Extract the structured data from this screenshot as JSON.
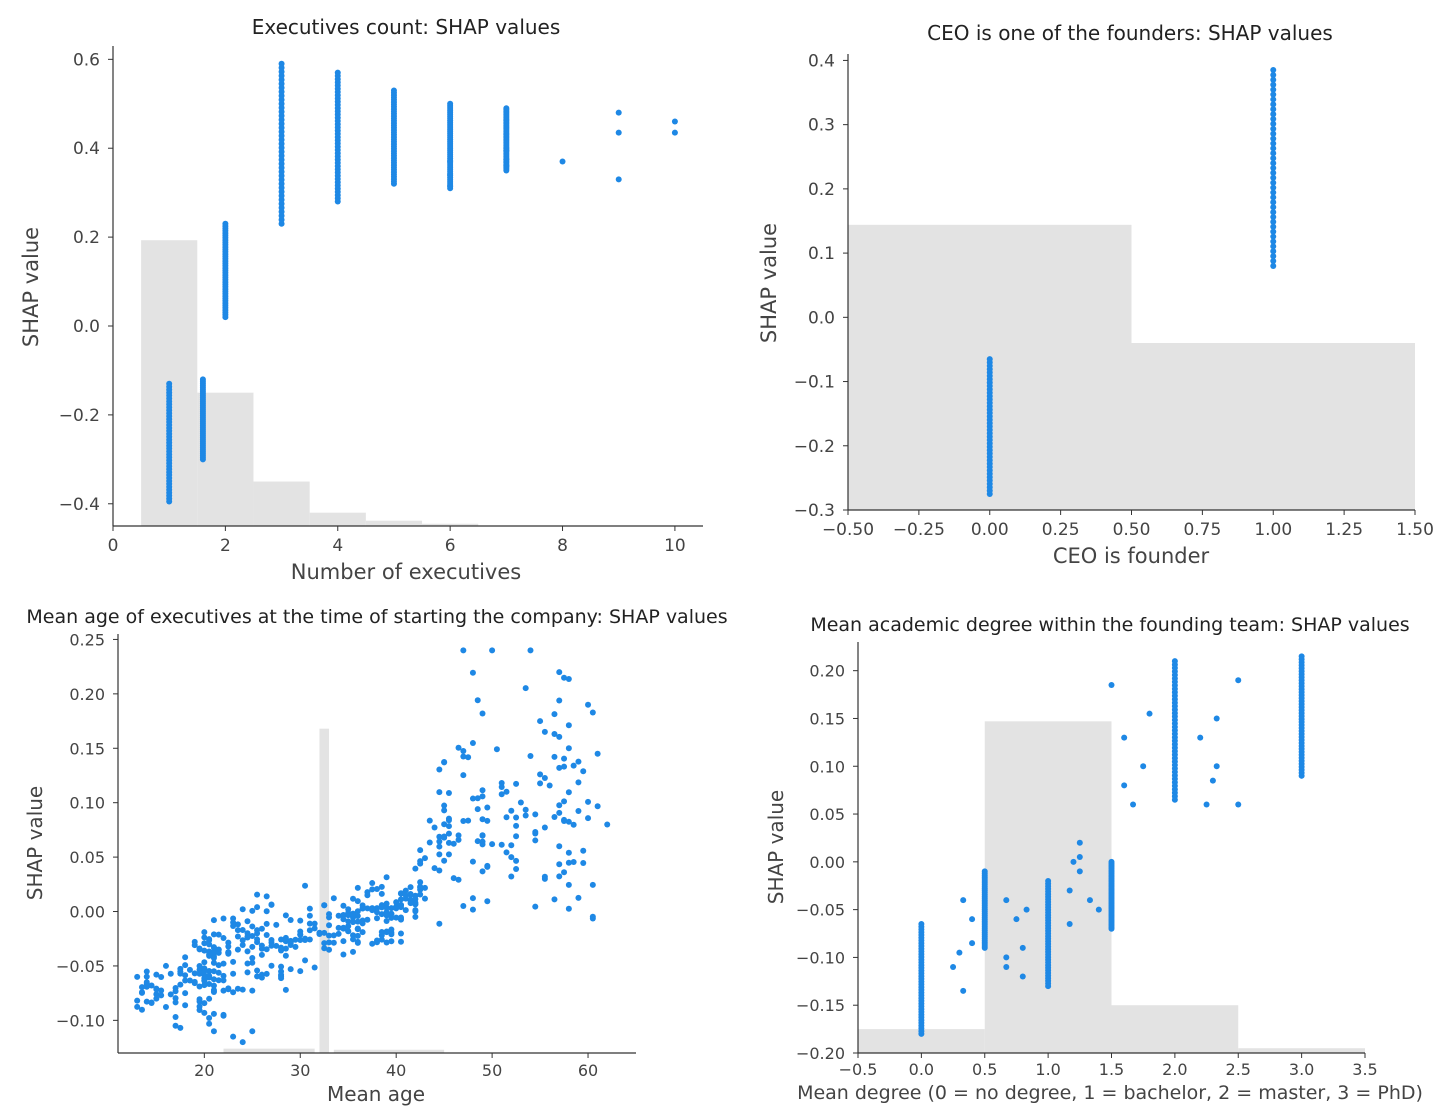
{
  "chart_data": [
    {
      "type": "scatter",
      "title": "Executives count: SHAP values",
      "xlabel": "Number of executives",
      "ylabel": "SHAP value",
      "xlim": [
        0,
        10.5
      ],
      "ylim": [
        -0.45,
        0.63
      ],
      "xticks": [
        0,
        2,
        4,
        6,
        8,
        10
      ],
      "xtick_labels": [
        "0",
        "2",
        "4",
        "6",
        "8",
        "10"
      ],
      "yticks": [
        -0.4,
        -0.2,
        0.0,
        0.2,
        0.4,
        0.6
      ],
      "ytick_labels": [
        "−0.4",
        "−0.2",
        "0.0",
        "0.2",
        "0.4",
        "0.6"
      ],
      "point_color": "#1E88E5",
      "hist_color": "#e3e3e3",
      "histogram": [
        {
          "x0": 0.5,
          "x1": 1.5,
          "top": 0.193
        },
        {
          "x0": 1.5,
          "x1": 2.5,
          "top": -0.15
        },
        {
          "x0": 2.5,
          "x1": 3.5,
          "top": -0.35
        },
        {
          "x0": 3.5,
          "x1": 4.5,
          "top": -0.42
        },
        {
          "x0": 4.5,
          "x1": 5.5,
          "top": -0.438
        },
        {
          "x0": 5.5,
          "x1": 6.5,
          "top": -0.445
        }
      ],
      "columns": [
        {
          "x": 1.0,
          "min": -0.395,
          "max": -0.13
        },
        {
          "x": 1.6,
          "min": -0.3,
          "max": -0.12
        },
        {
          "x": 2.0,
          "min": 0.02,
          "max": 0.23
        },
        {
          "x": 3.0,
          "min": 0.23,
          "max": 0.59
        },
        {
          "x": 4.0,
          "min": 0.28,
          "max": 0.57
        },
        {
          "x": 5.0,
          "min": 0.32,
          "max": 0.53
        },
        {
          "x": 6.0,
          "min": 0.31,
          "max": 0.5
        },
        {
          "x": 7.0,
          "min": 0.35,
          "max": 0.49
        }
      ],
      "points": [
        [
          8,
          0.37
        ],
        [
          9,
          0.48
        ],
        [
          9,
          0.435
        ],
        [
          9,
          0.33
        ],
        [
          10,
          0.46
        ],
        [
          10,
          0.435
        ],
        [
          7,
          0.395
        ],
        [
          7,
          0.375
        ],
        [
          7,
          0.36
        ],
        [
          6,
          0.37
        ],
        [
          6,
          0.34
        ],
        [
          6,
          0.315
        ]
      ]
    },
    {
      "type": "scatter",
      "title": "CEO is one of the founders: SHAP values",
      "xlabel": "CEO is founder",
      "ylabel": "SHAP value",
      "xlim": [
        -0.5,
        1.5
      ],
      "ylim": [
        -0.3,
        0.41
      ],
      "xticks": [
        -0.5,
        -0.25,
        0.0,
        0.25,
        0.5,
        0.75,
        1.0,
        1.25,
        1.5
      ],
      "xtick_labels": [
        "−0.50",
        "−0.25",
        "0.00",
        "0.25",
        "0.50",
        "0.75",
        "1.00",
        "1.25",
        "1.50"
      ],
      "yticks": [
        -0.3,
        -0.2,
        -0.1,
        0.0,
        0.1,
        0.2,
        0.3,
        0.4
      ],
      "ytick_labels": [
        "−0.3",
        "−0.2",
        "−0.1",
        "0.0",
        "0.1",
        "0.2",
        "0.3",
        "0.4"
      ],
      "point_color": "#1E88E5",
      "hist_color": "#e3e3e3",
      "histogram": [
        {
          "x0": -0.5,
          "x1": 0.5,
          "top": 0.144
        },
        {
          "x0": 0.5,
          "x1": 1.5,
          "top": -0.04
        }
      ],
      "columns": [
        {
          "x": 0.0,
          "min": -0.275,
          "max": -0.065
        },
        {
          "x": 1.0,
          "min": 0.08,
          "max": 0.385
        }
      ],
      "points": []
    },
    {
      "type": "scatter",
      "title": "Mean age of executives at the time of starting the company: SHAP values",
      "xlabel": "Mean age",
      "ylabel": "SHAP value",
      "xlim": [
        11,
        65
      ],
      "ylim": [
        -0.13,
        0.255
      ],
      "xticks": [
        20,
        30,
        40,
        50,
        60
      ],
      "xtick_labels": [
        "20",
        "30",
        "40",
        "50",
        "60"
      ],
      "yticks": [
        -0.1,
        -0.05,
        0.0,
        0.05,
        0.1,
        0.15,
        0.2,
        0.25
      ],
      "ytick_labels": [
        "−0.10",
        "−0.05",
        "0.00",
        "0.05",
        "0.10",
        "0.15",
        "0.20",
        "0.25"
      ],
      "point_color": "#1E88E5",
      "hist_color": "#e3e3e3",
      "histogram": [
        {
          "x0": 32.0,
          "x1": 33.0,
          "top": 0.168
        },
        {
          "x0": 22.0,
          "x1": 31.5,
          "top": -0.126
        },
        {
          "x0": 33.5,
          "x1": 45.0,
          "top": -0.127
        }
      ],
      "trend": [
        [
          13,
          -0.075
        ],
        [
          20,
          -0.06
        ],
        [
          25,
          -0.035
        ],
        [
          30,
          -0.025
        ],
        [
          35,
          -0.012
        ],
        [
          40,
          0.0
        ],
        [
          42,
          0.01
        ],
        [
          44,
          0.06
        ],
        [
          48,
          0.11
        ],
        [
          52,
          0.11
        ],
        [
          60,
          0.1
        ]
      ],
      "trend_spread": [
        [
          13,
          0.012
        ],
        [
          20,
          0.03
        ],
        [
          25,
          0.03
        ],
        [
          30,
          0.025
        ],
        [
          35,
          0.02
        ],
        [
          40,
          0.02
        ],
        [
          42,
          0.025
        ],
        [
          44,
          0.05
        ],
        [
          48,
          0.07
        ],
        [
          52,
          0.07
        ],
        [
          60,
          0.08
        ]
      ],
      "points": [
        [
          13,
          -0.06
        ],
        [
          14,
          -0.065
        ],
        [
          15,
          -0.08
        ],
        [
          16,
          -0.05
        ],
        [
          17,
          -0.105
        ],
        [
          18,
          -0.075
        ],
        [
          21,
          -0.11
        ],
        [
          22,
          -0.095
        ],
        [
          23,
          -0.115
        ],
        [
          24,
          -0.12
        ],
        [
          25,
          -0.11
        ],
        [
          47,
          0.24
        ],
        [
          50,
          0.24
        ],
        [
          54,
          0.24
        ],
        [
          57,
          0.22
        ],
        [
          60,
          0.19
        ],
        [
          61,
          0.145
        ],
        [
          62,
          0.08
        ],
        [
          55,
          0.175
        ],
        [
          58,
          0.15
        ],
        [
          57,
          0.06
        ]
      ]
    },
    {
      "type": "scatter",
      "title": "Mean academic degree within the founding team: SHAP values",
      "xlabel": "Mean degree (0 = no degree, 1 = bachelor, 2 = master, 3 = PhD)",
      "ylabel": "SHAP value",
      "xlim": [
        -0.5,
        3.5
      ],
      "ylim": [
        -0.2,
        0.23
      ],
      "xticks": [
        -0.5,
        0.0,
        0.5,
        1.0,
        1.5,
        2.0,
        2.5,
        3.0,
        3.5
      ],
      "xtick_labels": [
        "−0.5",
        "0.0",
        "0.5",
        "1.0",
        "1.5",
        "2.0",
        "2.5",
        "3.0",
        "3.5"
      ],
      "yticks": [
        -0.2,
        -0.15,
        -0.1,
        -0.05,
        0.0,
        0.05,
        0.1,
        0.15,
        0.2
      ],
      "ytick_labels": [
        "−0.20",
        "−0.15",
        "−0.10",
        "−0.05",
        "0.00",
        "0.05",
        "0.10",
        "0.15",
        "0.20"
      ],
      "point_color": "#1E88E5",
      "hist_color": "#e3e3e3",
      "histogram": [
        {
          "x0": -0.5,
          "x1": 0.5,
          "top": -0.175
        },
        {
          "x0": 0.5,
          "x1": 1.5,
          "top": 0.147
        },
        {
          "x0": 1.5,
          "x1": 2.5,
          "top": -0.15
        },
        {
          "x0": 2.5,
          "x1": 3.5,
          "top": -0.195
        }
      ],
      "columns": [
        {
          "x": 0.0,
          "min": -0.18,
          "max": -0.065
        },
        {
          "x": 0.5,
          "min": -0.09,
          "max": -0.01
        },
        {
          "x": 1.0,
          "min": -0.13,
          "max": -0.02
        },
        {
          "x": 1.5,
          "min": -0.07,
          "max": 0.0
        },
        {
          "x": 2.0,
          "min": 0.065,
          "max": 0.21
        },
        {
          "x": 3.0,
          "min": 0.09,
          "max": 0.215
        }
      ],
      "points": [
        [
          0.25,
          -0.11
        ],
        [
          0.3,
          -0.095
        ],
        [
          0.33,
          -0.135
        ],
        [
          0.33,
          -0.04
        ],
        [
          0.4,
          -0.085
        ],
        [
          0.4,
          -0.06
        ],
        [
          0.67,
          -0.04
        ],
        [
          0.67,
          -0.1
        ],
        [
          0.67,
          -0.11
        ],
        [
          0.75,
          -0.06
        ],
        [
          0.8,
          -0.09
        ],
        [
          0.8,
          -0.12
        ],
        [
          0.83,
          -0.05
        ],
        [
          1.17,
          -0.03
        ],
        [
          1.17,
          -0.065
        ],
        [
          1.2,
          0.0
        ],
        [
          1.25,
          -0.01
        ],
        [
          1.25,
          0.005
        ],
        [
          1.25,
          0.02
        ],
        [
          1.33,
          -0.04
        ],
        [
          1.4,
          -0.05
        ],
        [
          1.6,
          0.13
        ],
        [
          1.67,
          0.06
        ],
        [
          1.75,
          0.1
        ],
        [
          1.8,
          0.155
        ],
        [
          1.6,
          0.08
        ],
        [
          1.5,
          0.185
        ],
        [
          2.2,
          0.13
        ],
        [
          2.25,
          0.06
        ],
        [
          2.3,
          0.085
        ],
        [
          2.33,
          0.15
        ],
        [
          2.33,
          0.1
        ],
        [
          2.5,
          0.19
        ],
        [
          2.5,
          0.06
        ]
      ]
    }
  ]
}
